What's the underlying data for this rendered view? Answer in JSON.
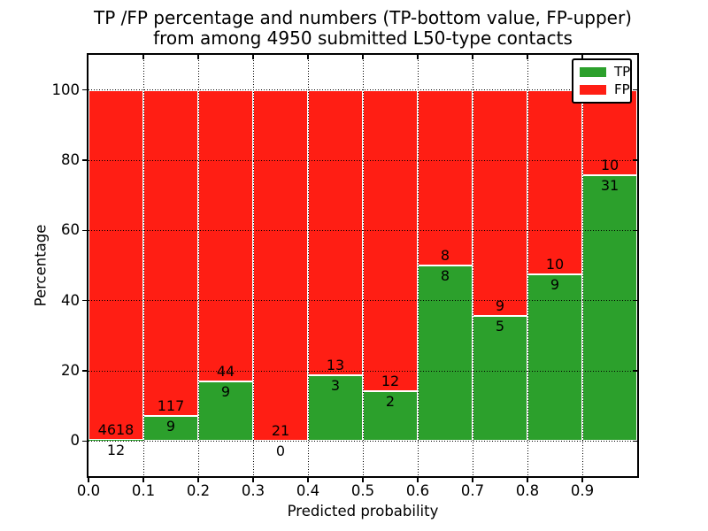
{
  "figure": {
    "title_line1": "TP /FP percentage and numbers (TP-bottom value, FP-upper)",
    "title_line2": "from among 4950 submitted L50-type contacts"
  },
  "axes": {
    "xlabel": "Predicted probability",
    "ylabel": "Percentage",
    "x_tick_labels": [
      "0.0",
      "0.1",
      "0.2",
      "0.3",
      "0.4",
      "0.5",
      "0.6",
      "0.7",
      "0.8",
      "0.9"
    ],
    "y_tick_labels": [
      "0",
      "20",
      "40",
      "60",
      "80",
      "100"
    ],
    "y_tick_values": [
      0,
      20,
      40,
      60,
      80,
      100
    ],
    "xlim": [
      0.0,
      1.0
    ],
    "ylim": [
      -10,
      110
    ],
    "grid_style": "dotted"
  },
  "legend": {
    "position": "upper-right",
    "items": [
      {
        "label": "TP",
        "color": "#2ca02c"
      },
      {
        "label": "FP",
        "color": "#ff1e14"
      }
    ]
  },
  "chart_data": {
    "type": "bar",
    "stacked": true,
    "normalized_to": 100,
    "title": "TP /FP percentage and numbers (TP-bottom value, FP-upper) from among 4950 submitted L50-type contacts",
    "xlabel": "Predicted probability",
    "ylabel": "Percentage",
    "bin_width": 0.1,
    "bin_starts": [
      0.0,
      0.1,
      0.2,
      0.3,
      0.4,
      0.5,
      0.6,
      0.7,
      0.8,
      0.9
    ],
    "series": [
      {
        "name": "TP",
        "color": "#2ca02c",
        "counts": [
          12,
          9,
          9,
          0,
          3,
          2,
          8,
          5,
          9,
          31
        ]
      },
      {
        "name": "FP",
        "color": "#ff1e14",
        "counts": [
          4618,
          117,
          44,
          21,
          13,
          12,
          8,
          9,
          10,
          10
        ]
      }
    ],
    "tp_percent": [
      0.26,
      7.14,
      16.98,
      0.0,
      18.75,
      14.29,
      50.0,
      35.71,
      47.37,
      75.61
    ],
    "fp_percent": [
      99.74,
      92.86,
      83.02,
      100.0,
      81.25,
      85.71,
      50.0,
      64.29,
      52.63,
      24.39
    ]
  },
  "colors": {
    "tp": "#2ca02c",
    "fp": "#ff1e14",
    "grid": "#000000",
    "edge": "#ffffff",
    "background": "#ffffff"
  }
}
